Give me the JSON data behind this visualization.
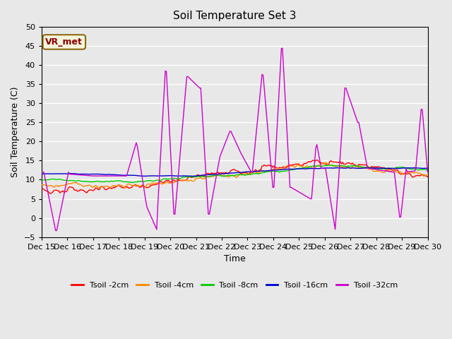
{
  "title": "Soil Temperature Set 3",
  "xlabel": "Time",
  "ylabel": "Soil Temperature (C)",
  "ylim": [
    -5,
    50
  ],
  "yticks": [
    -5,
    0,
    5,
    10,
    15,
    20,
    25,
    30,
    35,
    40,
    45,
    50
  ],
  "annotation": "VR_met",
  "bg_color": "#e8e8e8",
  "colors": {
    "Tsoil -2cm": "#ff0000",
    "Tsoil -4cm": "#ff8800",
    "Tsoil -8cm": "#00cc00",
    "Tsoil -16cm": "#0000cc",
    "Tsoil -32cm": "#cc00cc"
  },
  "xtick_labels": [
    "Dec 15",
    "Dec 16",
    "Dec 17",
    "Dec 18",
    "Dec 19",
    "Dec 20",
    "Dec 21",
    "Dec 22",
    "Dec 23",
    "Dec 24",
    "Dec 25",
    "Dec 26",
    "Dec 27",
    "Dec 28",
    "Dec 29",
    "Dec 30"
  ],
  "n_points": 360
}
